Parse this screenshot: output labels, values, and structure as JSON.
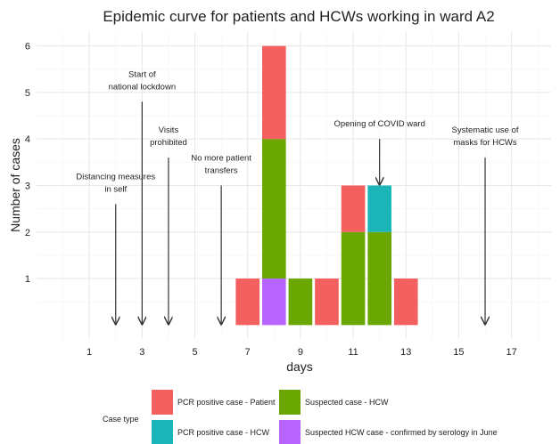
{
  "chart_data": {
    "type": "bar",
    "stacked": true,
    "title": "Epidemic curve for patients and HCWs working in ward A2",
    "xlabel": "days",
    "ylabel": "Number of cases",
    "x": [
      7,
      8,
      9,
      10,
      11,
      12,
      13
    ],
    "series": [
      {
        "name": "PCR positive case - Patient",
        "color": "#f45f5f",
        "values": [
          1,
          2,
          0,
          1,
          1,
          0,
          1
        ]
      },
      {
        "name": "PCR positive case - HCW",
        "color": "#1bb5b9",
        "values": [
          0,
          0,
          0,
          0,
          0,
          1,
          0
        ]
      },
      {
        "name": "Suspected case - HCW",
        "color": "#6aa700",
        "values": [
          0,
          3,
          1,
          0,
          2,
          2,
          0
        ]
      },
      {
        "name": "Suspected HCW case - confirmed by serology in June",
        "color": "#b865ff",
        "values": [
          0,
          1,
          0,
          0,
          0,
          0,
          0
        ]
      }
    ],
    "xlim": [
      -1,
      18.5
    ],
    "ylim": [
      -0.3,
      6.3
    ],
    "xticks": [
      1,
      3,
      5,
      7,
      9,
      11,
      13,
      15,
      17
    ],
    "yticks": [
      1,
      2,
      3,
      4,
      5,
      6
    ],
    "x_minor_ticks": [
      0,
      2,
      4,
      6,
      8,
      10,
      12,
      14,
      16,
      18
    ],
    "y_minor_ticks": [
      0.5,
      1.5,
      2.5,
      3.5,
      4.5,
      5.5
    ],
    "grid": true,
    "legend_title": "Case type",
    "legend_position": "bottom",
    "annotations": [
      {
        "lines": [
          "Distancing measures",
          "in self"
        ],
        "x": 2,
        "y_from": 2.6,
        "y_to": 0
      },
      {
        "lines": [
          "Start of",
          "national lockdown"
        ],
        "x": 3,
        "y_from": 4.8,
        "y_to": 0
      },
      {
        "lines": [
          "Visits",
          "prohibited"
        ],
        "x": 4,
        "y_from": 3.6,
        "y_to": 0
      },
      {
        "lines": [
          "No more patient",
          "transfers"
        ],
        "x": 6,
        "y_from": 3.0,
        "y_to": 0
      },
      {
        "lines": [
          "Opening of COVID ward"
        ],
        "x": 12,
        "y_from": 4.0,
        "y_to": 3.0
      },
      {
        "lines": [
          "Systematic use of",
          "masks for HCWs"
        ],
        "x": 16,
        "y_from": 3.6,
        "y_to": 0
      }
    ]
  }
}
